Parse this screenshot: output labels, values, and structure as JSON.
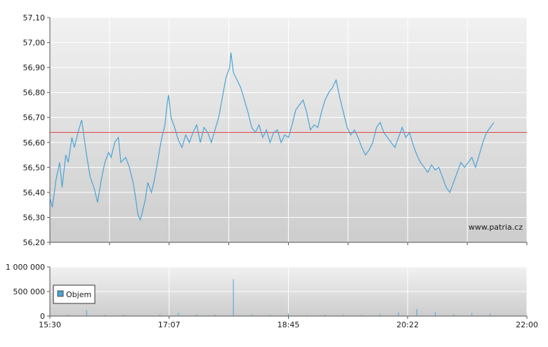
{
  "chart_data": [
    {
      "type": "line",
      "title": "",
      "xlabel": "",
      "ylabel": "",
      "x_range": [
        "15:30",
        "22:00"
      ],
      "ylim": [
        56.2,
        57.1
      ],
      "y_ticks": [
        "56,20",
        "56,30",
        "56,40",
        "56,50",
        "56,60",
        "56,70",
        "56,80",
        "56,90",
        "57,00",
        "57,10"
      ],
      "grid": true,
      "reference_line": 56.64,
      "watermark": "www.patria.cz",
      "colors": {
        "line": "#4aa3d4",
        "reference": "#e04545",
        "grid": "#ffffff",
        "background_top": "#f1f1f1",
        "background_bottom": "#cdcdcd"
      },
      "series": [
        {
          "values": [
            [
              "15:30",
              56.38
            ],
            [
              "15:32",
              56.34
            ],
            [
              "15:35",
              56.45
            ],
            [
              "15:38",
              56.52
            ],
            [
              "15:40",
              56.42
            ],
            [
              "15:43",
              56.55
            ],
            [
              "15:45",
              56.52
            ],
            [
              "15:48",
              56.62
            ],
            [
              "15:50",
              56.58
            ],
            [
              "15:53",
              56.64
            ],
            [
              "15:56",
              56.69
            ],
            [
              "15:58",
              56.62
            ],
            [
              "16:00",
              56.55
            ],
            [
              "16:03",
              56.46
            ],
            [
              "16:06",
              56.42
            ],
            [
              "16:09",
              56.36
            ],
            [
              "16:12",
              56.45
            ],
            [
              "16:15",
              56.52
            ],
            [
              "16:18",
              56.56
            ],
            [
              "16:20",
              56.54
            ],
            [
              "16:23",
              56.6
            ],
            [
              "16:26",
              56.62
            ],
            [
              "16:28",
              56.52
            ],
            [
              "16:32",
              56.54
            ],
            [
              "16:35",
              56.5
            ],
            [
              "16:38",
              56.44
            ],
            [
              "16:40",
              56.38
            ],
            [
              "16:42",
              56.31
            ],
            [
              "16:44",
              56.29
            ],
            [
              "16:46",
              56.33
            ],
            [
              "16:48",
              56.37
            ],
            [
              "16:50",
              56.44
            ],
            [
              "16:53",
              56.4
            ],
            [
              "16:55",
              56.44
            ],
            [
              "16:58",
              56.52
            ],
            [
              "17:00",
              56.58
            ],
            [
              "17:02",
              56.63
            ],
            [
              "17:04",
              56.67
            ],
            [
              "17:06",
              56.76
            ],
            [
              "17:07",
              56.79
            ],
            [
              "17:09",
              56.7
            ],
            [
              "17:12",
              56.66
            ],
            [
              "17:15",
              56.61
            ],
            [
              "17:18",
              56.58
            ],
            [
              "17:21",
              56.63
            ],
            [
              "17:24",
              56.6
            ],
            [
              "17:27",
              56.64
            ],
            [
              "17:30",
              56.67
            ],
            [
              "17:33",
              56.6
            ],
            [
              "17:36",
              56.66
            ],
            [
              "17:39",
              56.64
            ],
            [
              "17:42",
              56.6
            ],
            [
              "17:45",
              56.65
            ],
            [
              "17:48",
              56.7
            ],
            [
              "17:51",
              56.78
            ],
            [
              "17:54",
              56.86
            ],
            [
              "17:57",
              56.9
            ],
            [
              "17:58",
              56.96
            ],
            [
              "18:00",
              56.88
            ],
            [
              "18:03",
              56.85
            ],
            [
              "18:06",
              56.82
            ],
            [
              "18:09",
              56.77
            ],
            [
              "18:12",
              56.72
            ],
            [
              "18:15",
              56.66
            ],
            [
              "18:18",
              56.64
            ],
            [
              "18:21",
              56.67
            ],
            [
              "18:24",
              56.62
            ],
            [
              "18:27",
              56.65
            ],
            [
              "18:30",
              56.6
            ],
            [
              "18:33",
              56.64
            ],
            [
              "18:36",
              56.65
            ],
            [
              "18:39",
              56.6
            ],
            [
              "18:42",
              56.63
            ],
            [
              "18:45",
              56.62
            ],
            [
              "18:48",
              56.67
            ],
            [
              "18:51",
              56.73
            ],
            [
              "18:54",
              56.75
            ],
            [
              "18:57",
              56.77
            ],
            [
              "19:00",
              56.72
            ],
            [
              "19:03",
              56.65
            ],
            [
              "19:06",
              56.67
            ],
            [
              "19:09",
              56.66
            ],
            [
              "19:12",
              56.72
            ],
            [
              "19:15",
              56.77
            ],
            [
              "19:18",
              56.8
            ],
            [
              "19:21",
              56.82
            ],
            [
              "19:24",
              56.85
            ],
            [
              "19:27",
              56.78
            ],
            [
              "19:30",
              56.72
            ],
            [
              "19:33",
              56.66
            ],
            [
              "19:36",
              56.63
            ],
            [
              "19:39",
              56.65
            ],
            [
              "19:42",
              56.62
            ],
            [
              "19:45",
              56.58
            ],
            [
              "19:48",
              56.55
            ],
            [
              "19:51",
              56.57
            ],
            [
              "19:54",
              56.6
            ],
            [
              "19:57",
              56.66
            ],
            [
              "20:00",
              56.68
            ],
            [
              "20:03",
              56.64
            ],
            [
              "20:06",
              56.62
            ],
            [
              "20:09",
              56.6
            ],
            [
              "20:12",
              56.58
            ],
            [
              "20:15",
              56.62
            ],
            [
              "20:18",
              56.66
            ],
            [
              "20:21",
              56.62
            ],
            [
              "20:24",
              56.64
            ],
            [
              "20:27",
              56.59
            ],
            [
              "20:30",
              56.55
            ],
            [
              "20:33",
              56.52
            ],
            [
              "20:36",
              56.5
            ],
            [
              "20:39",
              56.48
            ],
            [
              "20:42",
              56.51
            ],
            [
              "20:45",
              56.49
            ],
            [
              "20:48",
              56.5
            ],
            [
              "20:51",
              56.46
            ],
            [
              "20:54",
              56.42
            ],
            [
              "20:57",
              56.4
            ],
            [
              "21:00",
              56.44
            ],
            [
              "21:03",
              56.48
            ],
            [
              "21:06",
              56.52
            ],
            [
              "21:09",
              56.5
            ],
            [
              "21:12",
              56.52
            ],
            [
              "21:15",
              56.54
            ],
            [
              "21:18",
              56.5
            ],
            [
              "21:21",
              56.55
            ],
            [
              "21:24",
              56.6
            ],
            [
              "21:27",
              56.64
            ],
            [
              "21:30",
              56.66
            ],
            [
              "21:33",
              56.68
            ]
          ]
        }
      ]
    },
    {
      "type": "bar",
      "title": "",
      "ylim": [
        0,
        1000000
      ],
      "y_ticks": [
        "0",
        "500 000",
        "1 000 000"
      ],
      "x_ticks": [
        "15:30",
        "17:07",
        "18:45",
        "20:22",
        "22:00"
      ],
      "grid": true,
      "legend": {
        "placement": "left",
        "label": "Objem"
      },
      "colors": {
        "bar": "#4aa3d4",
        "background_top": "#f1f1f1",
        "background_bottom": "#cdcdcd"
      },
      "series": [
        {
          "name": "Objem",
          "values": [
            [
              "15:45",
              30000
            ],
            [
              "16:00",
              120000
            ],
            [
              "16:15",
              25000
            ],
            [
              "16:30",
              30000
            ],
            [
              "16:45",
              20000
            ],
            [
              "17:00",
              35000
            ],
            [
              "17:15",
              60000
            ],
            [
              "17:30",
              40000
            ],
            [
              "17:45",
              30000
            ],
            [
              "18:00",
              750000
            ],
            [
              "18:15",
              40000
            ],
            [
              "18:30",
              30000
            ],
            [
              "18:45",
              50000
            ],
            [
              "19:00",
              25000
            ],
            [
              "19:15",
              30000
            ],
            [
              "19:30",
              35000
            ],
            [
              "19:45",
              25000
            ],
            [
              "20:00",
              45000
            ],
            [
              "20:15",
              70000
            ],
            [
              "20:30",
              140000
            ],
            [
              "20:45",
              80000
            ],
            [
              "21:00",
              40000
            ],
            [
              "21:15",
              60000
            ],
            [
              "21:30",
              50000
            ]
          ]
        }
      ]
    }
  ]
}
